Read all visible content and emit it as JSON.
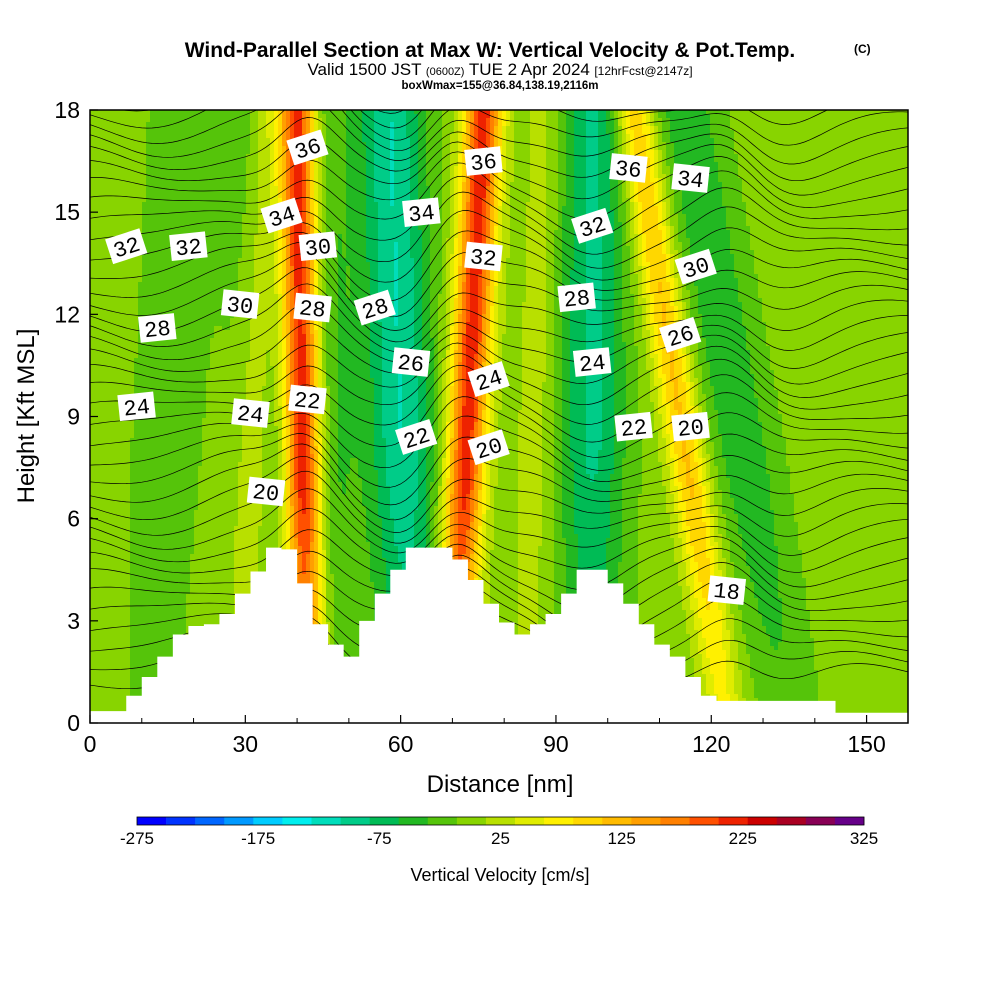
{
  "header": {
    "title_main": "Wind-Parallel Section at Max W: Vertical Velocity & Pot.Temp.",
    "title_copyright": "(C)",
    "valid_prefix": "Valid 1500 JST",
    "valid_utc": "(0600Z)",
    "valid_date": "TUE 2 Apr 2024",
    "valid_forecast": "[12hrFcst@2147z]",
    "subtitle": "boxWmax=155@36.84,138.19,2116m"
  },
  "chart_data": {
    "type": "heatmap",
    "xlabel": "Distance [nm]",
    "ylabel": "Height [Kft MSL]",
    "xlim": [
      0,
      158
    ],
    "ylim": [
      0,
      18
    ],
    "x_ticks": [
      0,
      30,
      60,
      90,
      120,
      150
    ],
    "y_ticks": [
      0,
      3,
      6,
      9,
      12,
      15,
      18
    ],
    "colorbar": {
      "label": "Vertical Velocity [cm/s]",
      "tick_labels": [
        "-275",
        "-175",
        "-75",
        "25",
        "125",
        "225",
        "325"
      ],
      "min": -275,
      "max": 325,
      "step": 25,
      "colors": [
        "#0000ff",
        "#0033ff",
        "#0066ff",
        "#0099ff",
        "#00ccff",
        "#00eeee",
        "#00ddbb",
        "#00cc88",
        "#00bb55",
        "#22b822",
        "#55c40a",
        "#88d400",
        "#b8e000",
        "#e0ec00",
        "#fff000",
        "#ffd700",
        "#ffbb00",
        "#ff9f00",
        "#ff8000",
        "#ff5000",
        "#ee2200",
        "#cc0000",
        "#aa0022",
        "#880055",
        "#660088"
      ]
    },
    "terrain_kft": [
      [
        0,
        0.35
      ],
      [
        7,
        0.35
      ],
      [
        7,
        0.8
      ],
      [
        10,
        0.8
      ],
      [
        10,
        1.35
      ],
      [
        13,
        1.35
      ],
      [
        13,
        1.95
      ],
      [
        16,
        1.95
      ],
      [
        16,
        2.6
      ],
      [
        19,
        2.6
      ],
      [
        19,
        2.85
      ],
      [
        22,
        2.85
      ],
      [
        22,
        2.9
      ],
      [
        25,
        2.9
      ],
      [
        25,
        3.2
      ],
      [
        28,
        3.2
      ],
      [
        28,
        3.8
      ],
      [
        31,
        3.8
      ],
      [
        31,
        4.45
      ],
      [
        34,
        4.45
      ],
      [
        34,
        5.15
      ],
      [
        37,
        5.15
      ],
      [
        37,
        5.1
      ],
      [
        40,
        5.1
      ],
      [
        40,
        4.1
      ],
      [
        43,
        4.1
      ],
      [
        43,
        2.9
      ],
      [
        46,
        2.9
      ],
      [
        46,
        2.3
      ],
      [
        49,
        2.3
      ],
      [
        49,
        1.95
      ],
      [
        52,
        1.95
      ],
      [
        52,
        3.0
      ],
      [
        55,
        3.0
      ],
      [
        55,
        3.8
      ],
      [
        58,
        3.8
      ],
      [
        58,
        4.5
      ],
      [
        61,
        4.5
      ],
      [
        61,
        5.15
      ],
      [
        70,
        5.15
      ],
      [
        70,
        4.8
      ],
      [
        73,
        4.8
      ],
      [
        73,
        4.2
      ],
      [
        76,
        4.2
      ],
      [
        76,
        3.5
      ],
      [
        79,
        3.5
      ],
      [
        79,
        2.95
      ],
      [
        82,
        2.95
      ],
      [
        82,
        2.6
      ],
      [
        85,
        2.6
      ],
      [
        85,
        2.9
      ],
      [
        88,
        2.9
      ],
      [
        88,
        3.2
      ],
      [
        91,
        3.2
      ],
      [
        91,
        3.8
      ],
      [
        94,
        3.8
      ],
      [
        94,
        4.5
      ],
      [
        100,
        4.5
      ],
      [
        100,
        4.1
      ],
      [
        103,
        4.1
      ],
      [
        103,
        3.5
      ],
      [
        106,
        3.5
      ],
      [
        106,
        2.9
      ],
      [
        109,
        2.9
      ],
      [
        109,
        2.3
      ],
      [
        112,
        2.3
      ],
      [
        112,
        1.95
      ],
      [
        115,
        1.95
      ],
      [
        115,
        1.35
      ],
      [
        118,
        1.35
      ],
      [
        118,
        0.8
      ],
      [
        121,
        0.8
      ],
      [
        121,
        0.65
      ],
      [
        144,
        0.65
      ],
      [
        144,
        0.3
      ],
      [
        158,
        0.3
      ]
    ],
    "updraft_bands": [
      {
        "x_bottom": 42,
        "x_top": 40,
        "peak": 270
      },
      {
        "x_bottom": 70,
        "x_top": 76,
        "peak": 230
      },
      {
        "x_bottom": 123,
        "x_top": 105,
        "peak": 120
      },
      {
        "x_bottom": 30,
        "x_top": 34,
        "peak": 60
      },
      {
        "x_bottom": 84,
        "x_top": 88,
        "peak": 30
      }
    ],
    "downdraft_bands": [
      {
        "x_bottom": 62,
        "x_top": 58,
        "peak": -110
      },
      {
        "x_bottom": 97,
        "x_top": 97,
        "peak": -90
      },
      {
        "x_bottom": 47,
        "x_top": 43,
        "peak": -50
      },
      {
        "x_bottom": 36,
        "x_top": 32,
        "peak": -40
      },
      {
        "x_bottom": 135,
        "x_top": 115,
        "peak": -55
      },
      {
        "x_bottom": 12,
        "x_top": 18,
        "peak": -30
      }
    ],
    "theta_contour_labels": [
      {
        "text": "36",
        "x": 42,
        "y": 16.9
      },
      {
        "text": "36",
        "x": 76,
        "y": 16.5
      },
      {
        "text": "36",
        "x": 104,
        "y": 16.3
      },
      {
        "text": "34",
        "x": 37,
        "y": 14.9
      },
      {
        "text": "34",
        "x": 64,
        "y": 15.0
      },
      {
        "text": "34",
        "x": 116,
        "y": 16.0
      },
      {
        "text": "32",
        "x": 7,
        "y": 14.0
      },
      {
        "text": "32",
        "x": 19,
        "y": 14.0
      },
      {
        "text": "32",
        "x": 76,
        "y": 13.7
      },
      {
        "text": "32",
        "x": 97,
        "y": 14.6
      },
      {
        "text": "30",
        "x": 44,
        "y": 14.0
      },
      {
        "text": "30",
        "x": 29,
        "y": 12.3
      },
      {
        "text": "30",
        "x": 117,
        "y": 13.4
      },
      {
        "text": "28",
        "x": 13,
        "y": 11.6
      },
      {
        "text": "28",
        "x": 43,
        "y": 12.2
      },
      {
        "text": "28",
        "x": 55,
        "y": 12.2
      },
      {
        "text": "28",
        "x": 94,
        "y": 12.5
      },
      {
        "text": "26",
        "x": 62,
        "y": 10.6
      },
      {
        "text": "26",
        "x": 114,
        "y": 11.4
      },
      {
        "text": "24",
        "x": 9,
        "y": 9.3
      },
      {
        "text": "24",
        "x": 31,
        "y": 9.1
      },
      {
        "text": "24",
        "x": 77,
        "y": 10.1
      },
      {
        "text": "24",
        "x": 97,
        "y": 10.6
      },
      {
        "text": "22",
        "x": 42,
        "y": 9.5
      },
      {
        "text": "22",
        "x": 63,
        "y": 8.4
      },
      {
        "text": "22",
        "x": 105,
        "y": 8.7
      },
      {
        "text": "20",
        "x": 34,
        "y": 6.8
      },
      {
        "text": "20",
        "x": 77,
        "y": 8.1
      },
      {
        "text": "20",
        "x": 116,
        "y": 8.7
      },
      {
        "text": "18",
        "x": 123,
        "y": 3.9
      }
    ]
  }
}
